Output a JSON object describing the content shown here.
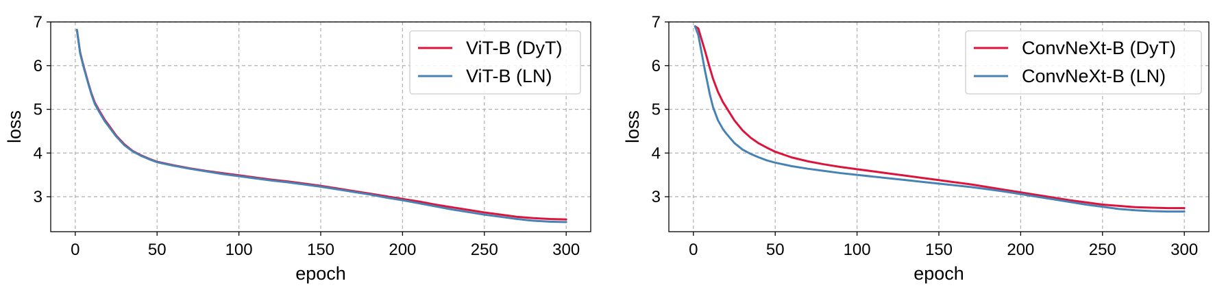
{
  "chart_data": [
    {
      "type": "line",
      "title": "",
      "xlabel": "epoch",
      "ylabel": "loss",
      "xlim": [
        -15,
        315
      ],
      "ylim": [
        2.2,
        7.0
      ],
      "xticks": [
        0,
        50,
        100,
        150,
        200,
        250,
        300
      ],
      "yticks": [
        3,
        4,
        5,
        6,
        7
      ],
      "grid": true,
      "legend_position": "top-right",
      "series": [
        {
          "name": "ViT-B (DyT)",
          "color": "#dc143c",
          "x": [
            1,
            3,
            5,
            8,
            10,
            12,
            15,
            18,
            20,
            25,
            30,
            35,
            40,
            45,
            50,
            60,
            70,
            80,
            90,
            100,
            110,
            120,
            130,
            140,
            150,
            160,
            170,
            180,
            190,
            200,
            210,
            220,
            230,
            240,
            250,
            260,
            270,
            280,
            290,
            300
          ],
          "y": [
            6.82,
            6.3,
            6.0,
            5.6,
            5.35,
            5.15,
            4.95,
            4.76,
            4.66,
            4.4,
            4.2,
            4.05,
            3.95,
            3.87,
            3.8,
            3.72,
            3.65,
            3.59,
            3.54,
            3.49,
            3.44,
            3.39,
            3.35,
            3.3,
            3.25,
            3.19,
            3.13,
            3.07,
            3.01,
            2.95,
            2.89,
            2.82,
            2.76,
            2.7,
            2.64,
            2.59,
            2.54,
            2.51,
            2.49,
            2.48
          ]
        },
        {
          "name": "ViT-B (LN)",
          "color": "#4682b4",
          "x": [
            1,
            3,
            5,
            8,
            10,
            12,
            15,
            18,
            20,
            25,
            30,
            35,
            40,
            45,
            50,
            60,
            70,
            80,
            90,
            100,
            110,
            120,
            130,
            140,
            150,
            160,
            170,
            180,
            190,
            200,
            210,
            220,
            230,
            240,
            250,
            260,
            270,
            280,
            290,
            300
          ],
          "y": [
            6.82,
            6.28,
            5.98,
            5.58,
            5.33,
            5.12,
            4.92,
            4.73,
            4.63,
            4.38,
            4.18,
            4.04,
            3.94,
            3.86,
            3.79,
            3.71,
            3.64,
            3.58,
            3.52,
            3.47,
            3.42,
            3.37,
            3.33,
            3.28,
            3.23,
            3.17,
            3.11,
            3.05,
            2.98,
            2.92,
            2.85,
            2.78,
            2.71,
            2.65,
            2.59,
            2.54,
            2.49,
            2.45,
            2.43,
            2.42
          ]
        }
      ]
    },
    {
      "type": "line",
      "title": "",
      "xlabel": "epoch",
      "ylabel": "loss",
      "xlim": [
        -15,
        315
      ],
      "ylim": [
        2.2,
        7.0
      ],
      "xticks": [
        0,
        50,
        100,
        150,
        200,
        250,
        300
      ],
      "yticks": [
        3,
        4,
        5,
        6,
        7
      ],
      "grid": true,
      "legend_position": "top-right",
      "series": [
        {
          "name": "ConvNeXt-B (DyT)",
          "color": "#dc143c",
          "x": [
            1,
            3,
            5,
            7,
            10,
            12,
            15,
            18,
            20,
            25,
            30,
            35,
            40,
            45,
            50,
            60,
            70,
            80,
            90,
            100,
            110,
            120,
            130,
            140,
            150,
            160,
            170,
            180,
            190,
            200,
            210,
            220,
            230,
            240,
            250,
            260,
            270,
            280,
            290,
            300
          ],
          "y": [
            6.9,
            6.85,
            6.6,
            6.35,
            5.95,
            5.7,
            5.4,
            5.17,
            5.05,
            4.75,
            4.52,
            4.35,
            4.22,
            4.12,
            4.03,
            3.9,
            3.81,
            3.74,
            3.68,
            3.63,
            3.58,
            3.53,
            3.48,
            3.43,
            3.38,
            3.33,
            3.28,
            3.22,
            3.16,
            3.1,
            3.04,
            2.98,
            2.92,
            2.87,
            2.82,
            2.79,
            2.76,
            2.75,
            2.74,
            2.74
          ]
        },
        {
          "name": "ConvNeXt-B (LN)",
          "color": "#4682b4",
          "x": [
            1,
            3,
            5,
            7,
            10,
            12,
            15,
            18,
            20,
            25,
            30,
            35,
            40,
            45,
            50,
            60,
            70,
            80,
            90,
            100,
            110,
            120,
            130,
            140,
            150,
            160,
            170,
            180,
            190,
            200,
            210,
            220,
            230,
            240,
            250,
            260,
            270,
            280,
            290,
            300
          ],
          "y": [
            6.9,
            6.7,
            6.3,
            5.9,
            5.35,
            5.05,
            4.75,
            4.55,
            4.45,
            4.23,
            4.08,
            3.98,
            3.9,
            3.83,
            3.78,
            3.7,
            3.64,
            3.59,
            3.54,
            3.5,
            3.46,
            3.42,
            3.38,
            3.34,
            3.3,
            3.26,
            3.22,
            3.17,
            3.12,
            3.06,
            3.0,
            2.94,
            2.88,
            2.82,
            2.77,
            2.72,
            2.69,
            2.67,
            2.66,
            2.66
          ]
        }
      ]
    }
  ]
}
